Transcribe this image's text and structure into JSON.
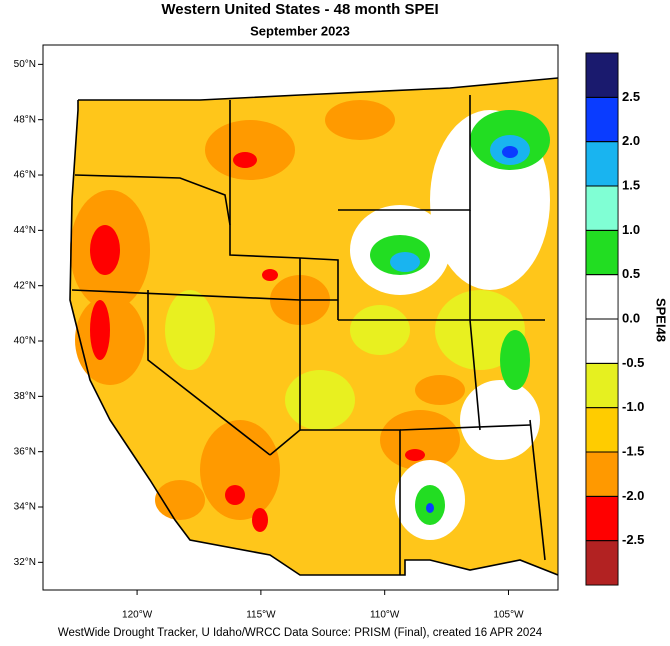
{
  "title": "Western United States - 48 month SPEI",
  "subtitle": "September 2023",
  "footer": "WestWide Drought Tracker, U Idaho/WRCC Data Source: PRISM (Final), created 16 APR 2024",
  "map": {
    "lat_lim": [
      31,
      50.7
    ],
    "lon_lim": [
      -123.8,
      -103
    ],
    "lat_ticks": [
      {
        "value": 50,
        "label": "50°N"
      },
      {
        "value": 48,
        "label": "48°N"
      },
      {
        "value": 46,
        "label": "46°N"
      },
      {
        "value": 44,
        "label": "44°N"
      },
      {
        "value": 42,
        "label": "42°N"
      },
      {
        "value": 40,
        "label": "40°N"
      },
      {
        "value": 38,
        "label": "38°N"
      },
      {
        "value": 36,
        "label": "36°N"
      },
      {
        "value": 34,
        "label": "34°N"
      },
      {
        "value": 32,
        "label": "32°N"
      }
    ],
    "lon_ticks": [
      {
        "value": -120,
        "label": "120°W"
      },
      {
        "value": -115,
        "label": "115°W"
      },
      {
        "value": -110,
        "label": "110°W"
      },
      {
        "value": -105,
        "label": "105°W"
      }
    ]
  },
  "colorbar": {
    "title": "SPEI48",
    "lim": [
      -3,
      3
    ],
    "colors": [
      "#b22222",
      "#ff0000",
      "#ff9900",
      "#ffcc00",
      "#e6f020",
      "#ffffff",
      "#ffffff",
      "#22dd22",
      "#80ffd4",
      "#19b4f0",
      "#0a3cff",
      "#1a1a6e"
    ],
    "ticks": [
      {
        "value": 2.5,
        "label": "2.5"
      },
      {
        "value": 2,
        "label": "2.0"
      },
      {
        "value": 1.5,
        "label": "1.5"
      },
      {
        "value": 1,
        "label": "1.0"
      },
      {
        "value": 0.5,
        "label": "0.5"
      },
      {
        "value": 0,
        "label": "0.0"
      },
      {
        "value": -0.5,
        "label": "-0.5"
      },
      {
        "value": -1,
        "label": "-1.0"
      },
      {
        "value": -1.5,
        "label": "-1.5"
      },
      {
        "value": -2,
        "label": "-2.0"
      },
      {
        "value": -2.5,
        "label": "-2.5"
      }
    ]
  }
}
